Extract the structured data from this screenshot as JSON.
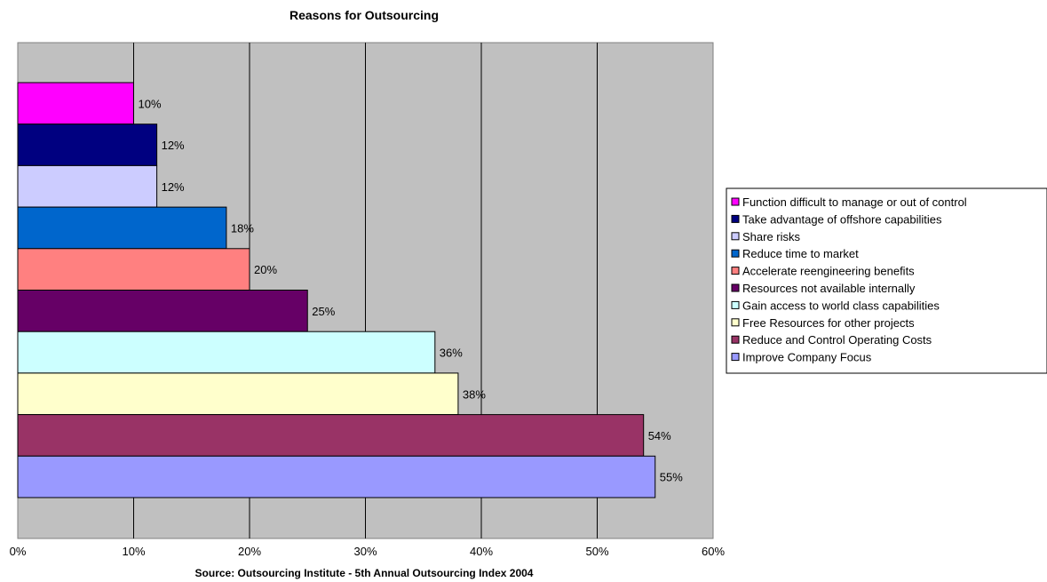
{
  "chart_data": {
    "type": "bar",
    "orientation": "horizontal",
    "title": "Reasons for Outsourcing",
    "xlabel": "Source: Outsourcing Institute - 5th Annual Outsourcing Index 2004",
    "ylabel": "",
    "xlim": [
      0,
      60
    ],
    "x_ticks": [
      "0%",
      "10%",
      "20%",
      "30%",
      "40%",
      "50%",
      "60%"
    ],
    "grid": "vertical",
    "legend_position": "right",
    "plot_background": "#c0c0c0",
    "categories": [
      "Function difficult to manage or out of control",
      "Take advantage of offshore capabilities",
      "Share risks",
      "Reduce time to market",
      "Accelerate reengineering benefits",
      "Resources not available internally",
      "Gain access to world class capabilities",
      "Free Resources for other projects",
      "Reduce and Control Operating Costs",
      "Improve Company Focus"
    ],
    "values": [
      10,
      12,
      12,
      18,
      20,
      25,
      36,
      38,
      54,
      55
    ],
    "data_labels": [
      "10%",
      "12%",
      "12%",
      "18%",
      "20%",
      "25%",
      "36%",
      "38%",
      "54%",
      "55%"
    ],
    "colors": [
      "#ff00ff",
      "#000080",
      "#ccccff",
      "#0066cc",
      "#ff8080",
      "#660066",
      "#ccffff",
      "#ffffcc",
      "#993366",
      "#9999ff"
    ]
  }
}
